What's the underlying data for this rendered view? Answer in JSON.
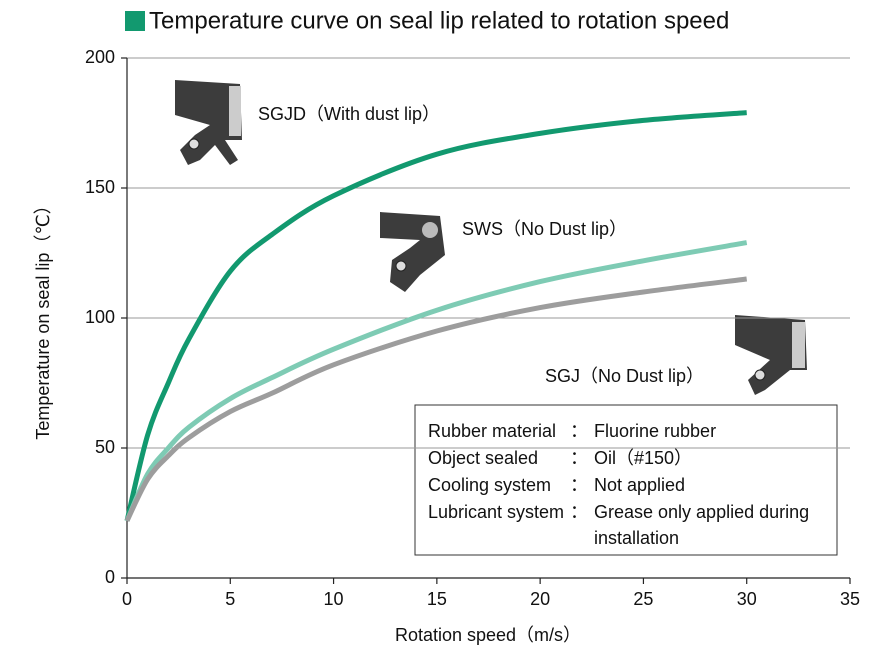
{
  "chart_data": {
    "type": "line",
    "title": "Temperature curve on seal lip related to rotation speed",
    "title_marker_color": "#12996f",
    "x_label": "Rotation speed（m/s）",
    "y_label": "Temperature on seal lip（℃）",
    "xlim": [
      0,
      35
    ],
    "xticks": [
      0,
      5,
      10,
      15,
      20,
      25,
      30,
      35
    ],
    "ylim": [
      0,
      200
    ],
    "yticks": [
      0,
      50,
      100,
      150,
      200
    ],
    "grid": true,
    "x": [
      0,
      1,
      2,
      3,
      5,
      7,
      10,
      15,
      20,
      25,
      30
    ],
    "series": [
      {
        "name": "SGJD（With dust lip）",
        "color": "#12996f",
        "values": [
          22,
          55,
          75,
          92,
          118,
          132,
          147,
          163,
          171,
          176,
          179
        ]
      },
      {
        "name": "SWS（No Dust lip）",
        "color": "#7ecbb4",
        "values": [
          22,
          40,
          50,
          58,
          69,
          77,
          88,
          103,
          114,
          122,
          129
        ]
      },
      {
        "name": "SGJ（No Dust lip）",
        "color": "#9d9d9d",
        "values": [
          22,
          38,
          47,
          54,
          64,
          71,
          82,
          95,
          104,
          110,
          115
        ]
      }
    ],
    "conditions": [
      {
        "key": "Rubber material",
        "value": [
          "Fluorine rubber"
        ]
      },
      {
        "key": "Object sealed",
        "value": [
          "Oil（#150）"
        ]
      },
      {
        "key": "Cooling system",
        "value": [
          "Not applied"
        ]
      },
      {
        "key": "Lubricant system",
        "value": [
          "Grease only applied during",
          "installation"
        ]
      }
    ],
    "separator": "："
  }
}
